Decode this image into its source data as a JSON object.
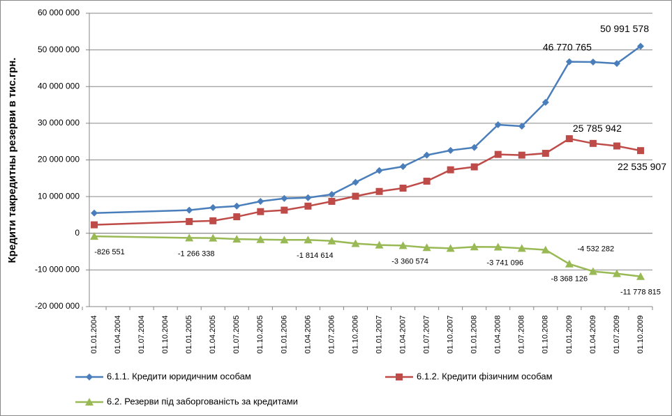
{
  "chart_data": {
    "type": "line",
    "y_label": "Кредити такредитны резерви в тис.грн.",
    "categories": [
      "01.01.2004",
      "01.04.2004",
      "01.07.2004",
      "01.10.2004",
      "01.01.2005",
      "01.04.2005",
      "01.07.2005",
      "01.10.2005",
      "01.01.2006",
      "01.04.2006",
      "01.07.2006",
      "01.10.2006",
      "01.01.2007",
      "01.04.2007",
      "01.07.2007",
      "01.10.2007",
      "01.01.2008",
      "01.04.2008",
      "01.07.2008",
      "01.10.2008",
      "01.01.2009",
      "01.04.2009",
      "01.07.2009",
      "01.10.2009"
    ],
    "connect_gaps": true,
    "ylim": [
      -20000000,
      60000000
    ],
    "yticks": [
      {
        "value": -20000000,
        "label": "-20 000 000"
      },
      {
        "value": -10000000,
        "label": "-10 000 000"
      },
      0,
      {
        "value": 10000000,
        "label": "10 000 000"
      },
      {
        "value": 20000000,
        "label": "20 000 000"
      },
      {
        "value": 30000000,
        "label": "30 000 000"
      },
      {
        "value": 40000000,
        "label": "40 000 000"
      },
      {
        "value": 50000000,
        "label": "50 000 000"
      },
      {
        "value": 60000000,
        "label": "60 000 000"
      }
    ],
    "grid": true,
    "series": [
      {
        "name": "6.1.1. Кредити юридичним особам",
        "color": "#4a7ebb",
        "marker": "diamond",
        "values": [
          5500000,
          null,
          null,
          null,
          6300000,
          7000000,
          7400000,
          8700000,
          9500000,
          9700000,
          10600000,
          13900000,
          17100000,
          18200000,
          21300000,
          22600000,
          23400000,
          29600000,
          29200000,
          35700000,
          46770765,
          46700000,
          46300000,
          50991578
        ],
        "value_labels": [
          null,
          null,
          null,
          null,
          null,
          null,
          null,
          null,
          null,
          null,
          null,
          null,
          null,
          null,
          null,
          null,
          null,
          null,
          null,
          null,
          "46 770 765",
          null,
          null,
          "50 991 578"
        ]
      },
      {
        "name": "6.1.2. Кредити фізичним особам",
        "color": "#be4b48",
        "marker": "square",
        "values": [
          2300000,
          null,
          null,
          null,
          3200000,
          3400000,
          4500000,
          5900000,
          6300000,
          7400000,
          8700000,
          10100000,
          11400000,
          12300000,
          14200000,
          17300000,
          18100000,
          21500000,
          21300000,
          21800000,
          25785942,
          24500000,
          23800000,
          22535907
        ],
        "value_labels": [
          null,
          null,
          null,
          null,
          null,
          null,
          null,
          null,
          null,
          null,
          null,
          null,
          null,
          null,
          null,
          null,
          null,
          null,
          null,
          null,
          "25 785 942",
          null,
          null,
          "22 535 907"
        ]
      },
      {
        "name": "6.2. Резерви під заборгованість за кредитами",
        "color": "#98b954",
        "marker": "triangle",
        "values": [
          -826551,
          null,
          null,
          null,
          -1266338,
          -1300000,
          -1600000,
          -1700000,
          -1800000,
          -1814614,
          -2100000,
          -2800000,
          -3200000,
          -3360574,
          -3900000,
          -4100000,
          -3700000,
          -3741096,
          -4100000,
          -4532282,
          -8368126,
          -10400000,
          -11000000,
          -11778815
        ],
        "value_labels": [
          "-826 551",
          null,
          null,
          null,
          "-1 266 338",
          null,
          null,
          null,
          null,
          "-1 814 614",
          null,
          null,
          null,
          "-3 360 574",
          null,
          null,
          null,
          "-3 741 096",
          null,
          "-4 532 282",
          "-8 368 126",
          null,
          null,
          "-11 778 815"
        ]
      }
    ]
  }
}
